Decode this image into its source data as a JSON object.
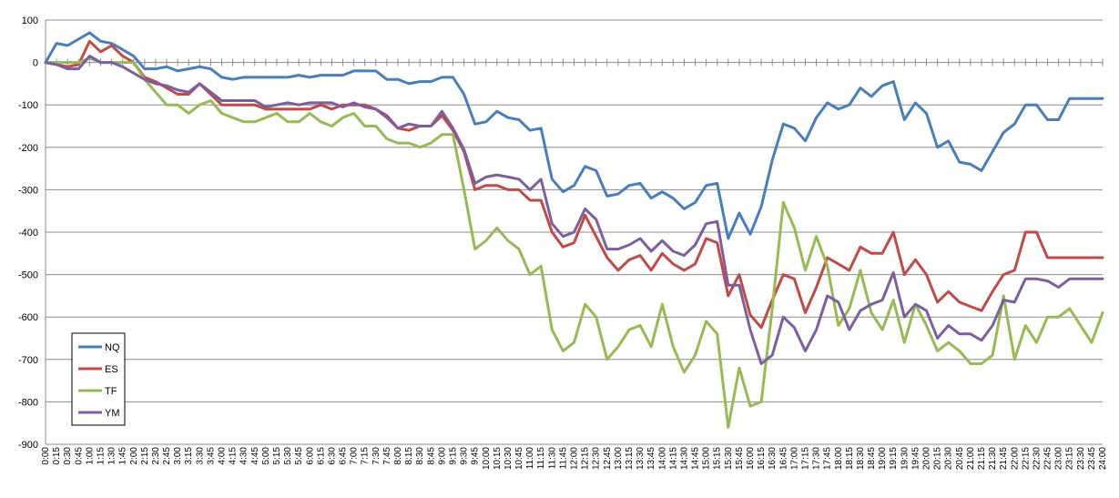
{
  "chart_data": {
    "type": "line",
    "ylim": [
      -900,
      100
    ],
    "yticks": [
      100,
      0,
      -100,
      -200,
      -300,
      -400,
      -500,
      -600,
      -700,
      -800,
      -900
    ],
    "grid": true,
    "legend_position": "bottom-left",
    "categories": [
      "0:00",
      "0:15",
      "0:30",
      "0:45",
      "1:00",
      "1:15",
      "1:30",
      "1:45",
      "2:00",
      "2:15",
      "2:30",
      "2:45",
      "3:00",
      "3:15",
      "3:30",
      "3:45",
      "4:00",
      "4:15",
      "4:30",
      "4:45",
      "5:00",
      "5:15",
      "5:30",
      "5:45",
      "6:00",
      "6:15",
      "6:30",
      "6:45",
      "7:00",
      "7:15",
      "7:30",
      "7:45",
      "8:00",
      "8:15",
      "8:30",
      "8:45",
      "9:00",
      "9:15",
      "9:30",
      "9:45",
      "10:00",
      "10:15",
      "10:30",
      "10:45",
      "11:00",
      "11:15",
      "11:30",
      "11:45",
      "12:00",
      "12:15",
      "12:30",
      "12:45",
      "13:00",
      "13:15",
      "13:30",
      "13:45",
      "14:00",
      "14:15",
      "14:30",
      "14:45",
      "15:00",
      "15:15",
      "15:30",
      "15:45",
      "16:00",
      "16:15",
      "16:30",
      "16:45",
      "17:00",
      "17:15",
      "17:30",
      "17:45",
      "18:00",
      "18:15",
      "18:30",
      "18:45",
      "19:00",
      "19:15",
      "19:30",
      "19:45",
      "20:00",
      "20:15",
      "20:30",
      "20:45",
      "21:00",
      "21:15",
      "21:30",
      "21:45",
      "22:00",
      "22:15",
      "22:30",
      "22:45",
      "23:00",
      "23:15",
      "23:30",
      "23:45",
      "24:00"
    ],
    "series": [
      {
        "name": "NQ",
        "color": "#4a7ebb",
        "values": [
          0,
          45,
          40,
          55,
          70,
          50,
          45,
          30,
          15,
          -15,
          -15,
          -10,
          -20,
          -15,
          -10,
          -15,
          -35,
          -40,
          -35,
          -35,
          -35,
          -35,
          -35,
          -30,
          -35,
          -30,
          -30,
          -30,
          -20,
          -20,
          -20,
          -40,
          -40,
          -50,
          -45,
          -45,
          -35,
          -35,
          -75,
          -145,
          -140,
          -115,
          -130,
          -135,
          -160,
          -155,
          -275,
          -305,
          -290,
          -245,
          -255,
          -315,
          -310,
          -290,
          -285,
          -320,
          -305,
          -320,
          -345,
          -330,
          -290,
          -285,
          -415,
          -355,
          -405,
          -340,
          -230,
          -145,
          -155,
          -185,
          -130,
          -95,
          -110,
          -100,
          -60,
          -80,
          -55,
          -45,
          -135,
          -95,
          -120,
          -200,
          -185,
          -235,
          -240,
          -255,
          -210,
          -165,
          -145,
          -100,
          -100,
          -135,
          -135,
          -85,
          -85,
          -85,
          -85
        ]
      },
      {
        "name": "ES",
        "color": "#be4b48",
        "values": [
          0,
          -5,
          -10,
          -5,
          50,
          25,
          40,
          15,
          0,
          -35,
          -45,
          -60,
          -75,
          -75,
          -50,
          -75,
          -100,
          -100,
          -100,
          -100,
          -110,
          -110,
          -110,
          -110,
          -110,
          -100,
          -110,
          -100,
          -100,
          -100,
          -110,
          -125,
          -155,
          -160,
          -150,
          -150,
          -125,
          -160,
          -210,
          -300,
          -290,
          -290,
          -300,
          -300,
          -325,
          -325,
          -400,
          -435,
          -425,
          -360,
          -410,
          -460,
          -490,
          -465,
          -455,
          -490,
          -450,
          -475,
          -490,
          -475,
          -415,
          -425,
          -550,
          -500,
          -595,
          -625,
          -560,
          -500,
          -510,
          -590,
          -530,
          -460,
          -475,
          -490,
          -435,
          -450,
          -450,
          -400,
          -500,
          -465,
          -500,
          -565,
          -540,
          -565,
          -575,
          -585,
          -540,
          -500,
          -490,
          -400,
          -400,
          -460,
          -460,
          -460,
          -460,
          -460,
          -460
        ]
      },
      {
        "name": "TF",
        "color": "#98b954",
        "values": [
          0,
          0,
          0,
          0,
          10,
          0,
          0,
          0,
          0,
          -40,
          -70,
          -100,
          -100,
          -120,
          -100,
          -90,
          -120,
          -130,
          -140,
          -140,
          -130,
          -120,
          -140,
          -140,
          -120,
          -140,
          -150,
          -130,
          -120,
          -150,
          -150,
          -180,
          -190,
          -190,
          -200,
          -190,
          -170,
          -170,
          -300,
          -440,
          -420,
          -390,
          -420,
          -440,
          -500,
          -480,
          -630,
          -680,
          -660,
          -570,
          -600,
          -700,
          -670,
          -630,
          -620,
          -670,
          -570,
          -670,
          -730,
          -690,
          -610,
          -640,
          -860,
          -720,
          -810,
          -800,
          -580,
          -330,
          -390,
          -490,
          -410,
          -480,
          -620,
          -580,
          -490,
          -590,
          -630,
          -560,
          -660,
          -570,
          -620,
          -680,
          -660,
          -680,
          -710,
          -710,
          -690,
          -550,
          -700,
          -620,
          -660,
          -600,
          -600,
          -580,
          -620,
          -660,
          -590
        ]
      },
      {
        "name": "YM",
        "color": "#7d5fa0",
        "values": [
          0,
          -5,
          -15,
          -15,
          15,
          0,
          0,
          -10,
          -25,
          -40,
          -50,
          -55,
          -65,
          -70,
          -50,
          -70,
          -90,
          -90,
          -90,
          -90,
          -105,
          -100,
          -95,
          -100,
          -95,
          -95,
          -95,
          -105,
          -95,
          -105,
          -110,
          -130,
          -155,
          -145,
          -150,
          -150,
          -115,
          -155,
          -205,
          -285,
          -270,
          -265,
          -270,
          -275,
          -300,
          -275,
          -380,
          -410,
          -400,
          -345,
          -370,
          -440,
          -440,
          -430,
          -415,
          -445,
          -420,
          -445,
          -455,
          -430,
          -380,
          -375,
          -525,
          -525,
          -630,
          -710,
          -690,
          -600,
          -625,
          -680,
          -630,
          -550,
          -565,
          -630,
          -585,
          -570,
          -560,
          -495,
          -600,
          -570,
          -585,
          -650,
          -620,
          -640,
          -640,
          -655,
          -620,
          -560,
          -565,
          -510,
          -510,
          -515,
          -530,
          -510,
          -510,
          -510,
          -510
        ]
      }
    ]
  }
}
